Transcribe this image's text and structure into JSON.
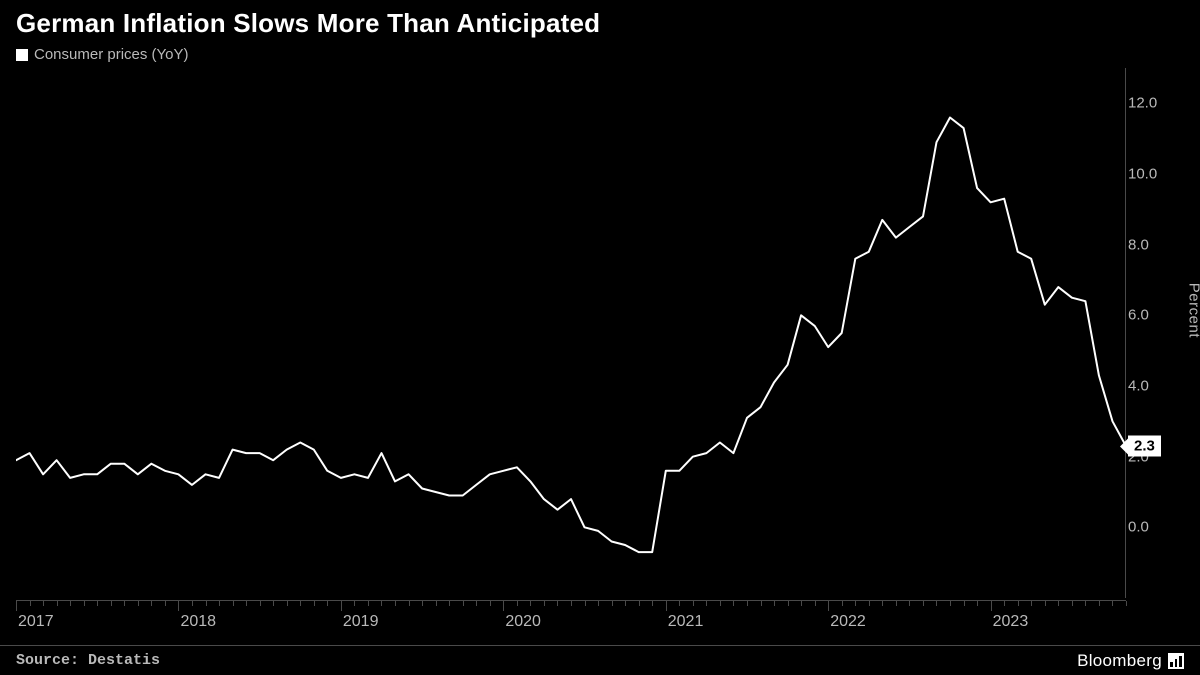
{
  "title": "German Inflation Slows More Than Anticipated",
  "legend_label": "Consumer prices (YoY)",
  "source": "Source: Destatis",
  "brand": "Bloomberg",
  "y_axis_label": "Percent",
  "chart": {
    "type": "line",
    "background_color": "#000000",
    "line_color": "#ffffff",
    "line_width": 2,
    "grid_color": "#4a4a4a",
    "tick_label_color": "#b9b9b9",
    "tick_fontsize": 15,
    "ylim": [
      -2.0,
      13.0
    ],
    "yticks": [
      0.0,
      2.0,
      4.0,
      6.0,
      8.0,
      10.0,
      12.0
    ],
    "ytick_labels": [
      "0.0",
      "2.0",
      "4.0",
      "6.0",
      "8.0",
      "10.0",
      "12.0"
    ],
    "xticks_major": [
      "2017",
      "2018",
      "2019",
      "2020",
      "2021",
      "2022",
      "2023"
    ],
    "x_start": "2017-01",
    "x_end": "2023-11",
    "last_value": 2.3,
    "last_value_label": "2.3",
    "values": [
      1.9,
      2.1,
      1.5,
      1.9,
      1.4,
      1.5,
      1.5,
      1.8,
      1.8,
      1.5,
      1.8,
      1.6,
      1.5,
      1.2,
      1.5,
      1.4,
      2.2,
      2.1,
      2.1,
      1.9,
      2.2,
      2.4,
      2.2,
      1.6,
      1.4,
      1.5,
      1.4,
      2.1,
      1.3,
      1.5,
      1.1,
      1.0,
      0.9,
      0.9,
      1.2,
      1.5,
      1.6,
      1.7,
      1.3,
      0.8,
      0.5,
      0.8,
      0.0,
      -0.1,
      -0.4,
      -0.5,
      -0.7,
      -0.7,
      1.6,
      1.6,
      2.0,
      2.1,
      2.4,
      2.1,
      3.1,
      3.4,
      4.1,
      4.6,
      6.0,
      5.7,
      5.1,
      5.5,
      7.6,
      7.8,
      8.7,
      8.2,
      8.5,
      8.8,
      10.9,
      11.6,
      11.3,
      9.6,
      9.2,
      9.3,
      7.8,
      7.6,
      6.3,
      6.8,
      6.5,
      6.4,
      4.3,
      3.0,
      2.3
    ]
  }
}
